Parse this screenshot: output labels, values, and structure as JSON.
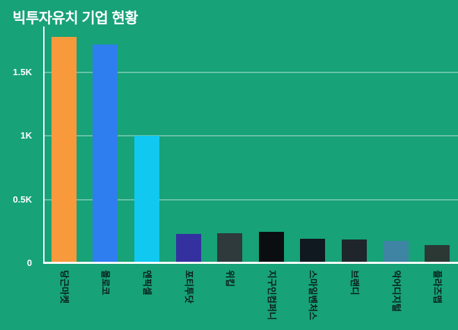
{
  "title": "빅투자유치 기업 현황",
  "chart_data": {
    "type": "bar",
    "title": "빅투자유치 기업 현황",
    "categories": [
      "당근마켓",
      "몰로코",
      "엔픽셀",
      "포티투닷",
      "위킵",
      "지구인컴퍼니",
      "스마일벤처스",
      "브랜디",
      "악어디지털",
      "플라즈맵"
    ],
    "values": [
      1780,
      1720,
      1000,
      230,
      235,
      245,
      190,
      185,
      175,
      145
    ],
    "bar_colors": [
      "#f8993c",
      "#2e7ef0",
      "#10c8f0",
      "#34309f",
      "#2e3a3c",
      "#0b0e11",
      "#101820",
      "#1f262b",
      "#3e84a3",
      "#2c3834"
    ],
    "yticks": [
      {
        "label": "1.5K",
        "value": 1500
      },
      {
        "label": "1K",
        "value": 1000
      },
      {
        "label": "0.5K",
        "value": 500
      },
      {
        "label": "0",
        "value": 0
      }
    ],
    "ylim": [
      0,
      1860
    ],
    "xlabel": "",
    "ylabel": "",
    "grid": true,
    "legend": false
  },
  "colors": {
    "background": "#17a277",
    "title": "#ffffff",
    "tick_label": "#ffffff",
    "category_label": "#0a1f1a",
    "grid": "rgba(255,255,255,0.35)",
    "axis": "#ffffff"
  }
}
